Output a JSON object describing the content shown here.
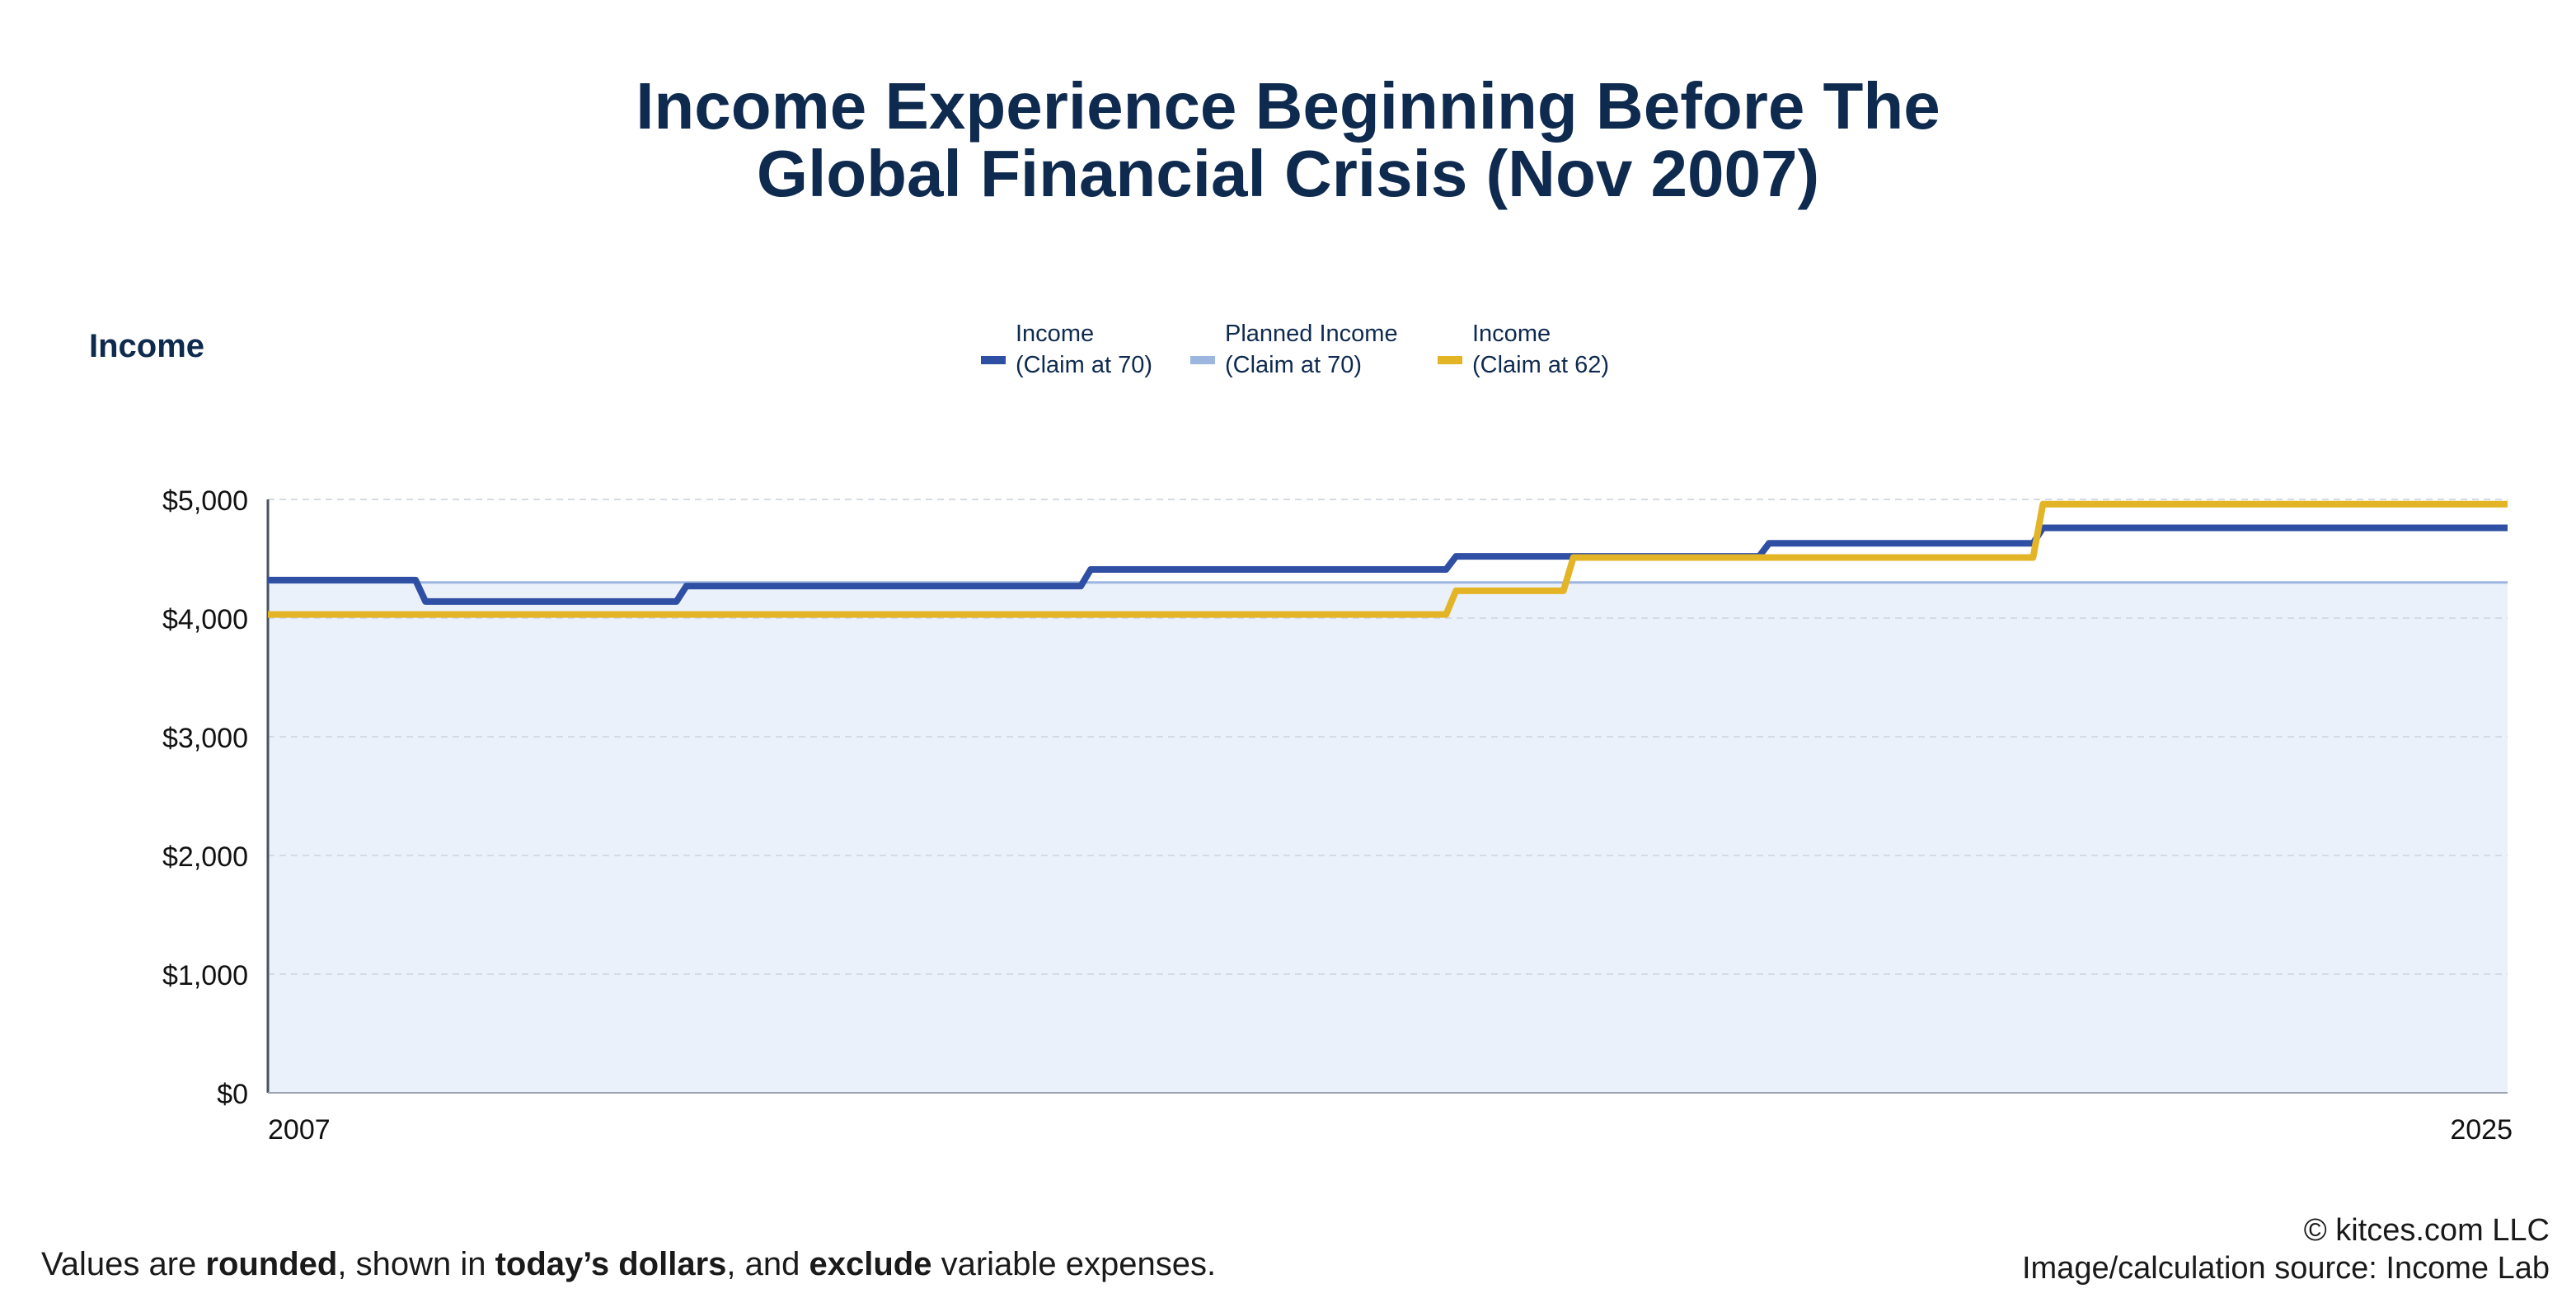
{
  "title_line1": "Income Experience Beginning Before The",
  "title_line2": "Global Financial Crisis (Nov 2007)",
  "footer": {
    "note_parts": [
      "Values are ",
      "rounded",
      ", shown in ",
      "today’s dollars",
      ", and ",
      "exclude",
      " variable expenses."
    ],
    "copyright": "© kitces.com LLC",
    "source": "Image/calculation source: Income Lab"
  },
  "colors": {
    "income_70": "#2e4fa3",
    "planned_70": "#9db6e0",
    "income_62": "#e3b526",
    "fill": "#ebf1fa",
    "title": "#0e2a4f"
  },
  "chart_data": {
    "type": "line",
    "ylabel": "Income",
    "ylim": [
      0,
      5000
    ],
    "yticks": [
      0,
      1000,
      2000,
      3000,
      4000,
      5000
    ],
    "ytick_labels": [
      "$0",
      "$1,000",
      "$2,000",
      "$3,000",
      "$4,000",
      "$5,000"
    ],
    "xlim": [
      2007.83,
      2025
    ],
    "xtick_labels": [
      "2007",
      "2025"
    ],
    "grid": true,
    "legend_position": "top",
    "series": [
      {
        "name": "Income (Claim at 70)",
        "label_line1": "Income",
        "label_line2": "(Claim at 70)",
        "color": "#2e4fa3",
        "step": true,
        "points": [
          [
            2007.83,
            4320
          ],
          [
            2009.0,
            4140
          ],
          [
            2011.0,
            4270
          ],
          [
            2014.1,
            4410
          ],
          [
            2016.9,
            4520
          ],
          [
            2019.3,
            4630
          ],
          [
            2021.4,
            4760
          ],
          [
            2025.0,
            4760
          ]
        ]
      },
      {
        "name": "Planned Income (Claim at 70)",
        "label_line1": "Planned Income",
        "label_line2": "(Claim at 70)",
        "color": "#9db6e0",
        "step": true,
        "points": [
          [
            2007.83,
            4300
          ],
          [
            2025.0,
            4300
          ]
        ]
      },
      {
        "name": "Income (Claim at 62)",
        "label_line1": "Income",
        "label_line2": "(Claim at 62)",
        "color": "#e3b526",
        "step": true,
        "points": [
          [
            2007.83,
            4030
          ],
          [
            2016.9,
            4230
          ],
          [
            2017.8,
            4510
          ],
          [
            2021.4,
            4960
          ],
          [
            2025.0,
            4960
          ]
        ]
      }
    ]
  }
}
